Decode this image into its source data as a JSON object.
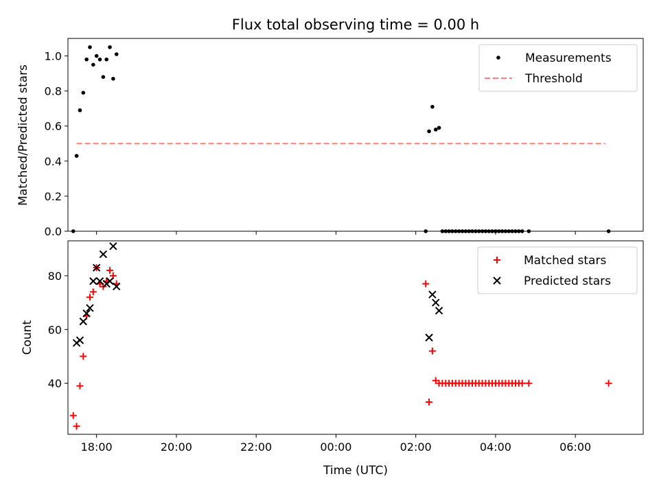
{
  "chart_data": [
    {
      "type": "scatter",
      "title": "Flux total observing time = 0.00 h",
      "xlabel": "",
      "ylabel": "Matched/Predicted stars",
      "ylim": [
        0,
        1.1
      ],
      "yticks": [
        0.0,
        0.2,
        0.4,
        0.6,
        0.8,
        1.0
      ],
      "ytick_labels": [
        "0.0",
        "0.2",
        "0.4",
        "0.6",
        "0.8",
        "1.0"
      ],
      "xlim": [
        "17:17",
        "07:42"
      ],
      "xticks": [
        "18:00",
        "20:00",
        "22:00",
        "00:00",
        "02:00",
        "04:00",
        "06:00"
      ],
      "xtick_labels": [],
      "legend_position": "top-right",
      "series": [
        {
          "name": "Measurements",
          "kind": "dots",
          "color": "#000000",
          "x": [
            "17:25",
            "17:30",
            "17:35",
            "17:40",
            "17:45",
            "17:50",
            "17:55",
            "18:00",
            "18:05",
            "18:10",
            "18:15",
            "18:20",
            "18:25",
            "18:30",
            "02:15",
            "02:20",
            "02:25",
            "02:30",
            "02:35",
            "02:40",
            "02:45",
            "02:50",
            "02:55",
            "03:00",
            "03:05",
            "03:10",
            "03:15",
            "03:20",
            "03:25",
            "03:30",
            "03:35",
            "03:40",
            "03:45",
            "03:50",
            "03:55",
            "04:00",
            "04:05",
            "04:10",
            "04:15",
            "04:20",
            "04:25",
            "04:30",
            "04:35",
            "04:40",
            "04:50",
            "06:50"
          ],
          "y": [
            0.0,
            0.43,
            0.69,
            0.79,
            0.98,
            1.05,
            0.95,
            1.0,
            0.98,
            0.88,
            0.98,
            1.05,
            0.87,
            1.01,
            0.0,
            0.57,
            0.71,
            0.58,
            0.59,
            0.0,
            0.0,
            0.0,
            0.0,
            0.0,
            0.0,
            0.0,
            0.0,
            0.0,
            0.0,
            0.0,
            0.0,
            0.0,
            0.0,
            0.0,
            0.0,
            0.0,
            0.0,
            0.0,
            0.0,
            0.0,
            0.0,
            0.0,
            0.0,
            0.0,
            0.0,
            0.0
          ]
        },
        {
          "name": "Threshold",
          "kind": "dashed",
          "color": "#ff7f7f",
          "x": [
            "17:30",
            "06:45"
          ],
          "y": [
            0.5,
            0.5
          ]
        }
      ]
    },
    {
      "type": "scatter",
      "title": "",
      "xlabel": "Time (UTC)",
      "ylabel": "Count",
      "ylim": [
        21,
        93
      ],
      "yticks": [
        40,
        60,
        80
      ],
      "ytick_labels": [
        "40",
        "60",
        "80"
      ],
      "xlim": [
        "17:17",
        "07:42"
      ],
      "xticks": [
        "18:00",
        "20:00",
        "22:00",
        "00:00",
        "02:00",
        "04:00",
        "06:00"
      ],
      "xtick_labels": [
        "18:00",
        "20:00",
        "22:00",
        "00:00",
        "02:00",
        "04:00",
        "06:00"
      ],
      "legend_position": "top-right",
      "series": [
        {
          "name": "Matched stars",
          "kind": "plus",
          "color": "#ff0000",
          "x": [
            "17:25",
            "17:30",
            "17:35",
            "17:40",
            "17:45",
            "17:50",
            "17:55",
            "18:00",
            "18:05",
            "18:10",
            "18:15",
            "18:20",
            "18:25",
            "18:30",
            "02:15",
            "02:20",
            "02:25",
            "02:30",
            "02:35",
            "02:40",
            "02:45",
            "02:50",
            "02:55",
            "03:00",
            "03:05",
            "03:10",
            "03:15",
            "03:20",
            "03:25",
            "03:30",
            "03:35",
            "03:40",
            "03:45",
            "03:50",
            "03:55",
            "04:00",
            "04:05",
            "04:10",
            "04:15",
            "04:20",
            "04:25",
            "04:30",
            "04:35",
            "04:40",
            "04:50",
            "06:50"
          ],
          "y": [
            28,
            24,
            39,
            50,
            65,
            72,
            74,
            83,
            77,
            76,
            78,
            82,
            80,
            77,
            77,
            33,
            52,
            41,
            40,
            40,
            40,
            40,
            40,
            40,
            40,
            40,
            40,
            40,
            40,
            40,
            40,
            40,
            40,
            40,
            40,
            40,
            40,
            40,
            40,
            40,
            40,
            40,
            40,
            40,
            40,
            40
          ]
        },
        {
          "name": "Predicted stars",
          "kind": "cross",
          "color": "#000000",
          "x": [
            "17:30",
            "17:35",
            "17:40",
            "17:45",
            "17:50",
            "17:55",
            "18:00",
            "18:05",
            "18:10",
            "18:15",
            "18:20",
            "18:25",
            "18:30",
            "02:20",
            "02:25",
            "02:30",
            "02:35"
          ],
          "y": [
            55,
            56,
            63,
            66,
            68,
            78,
            83,
            78,
            88,
            77,
            78,
            91,
            76,
            57,
            73,
            70,
            67
          ]
        }
      ]
    }
  ]
}
